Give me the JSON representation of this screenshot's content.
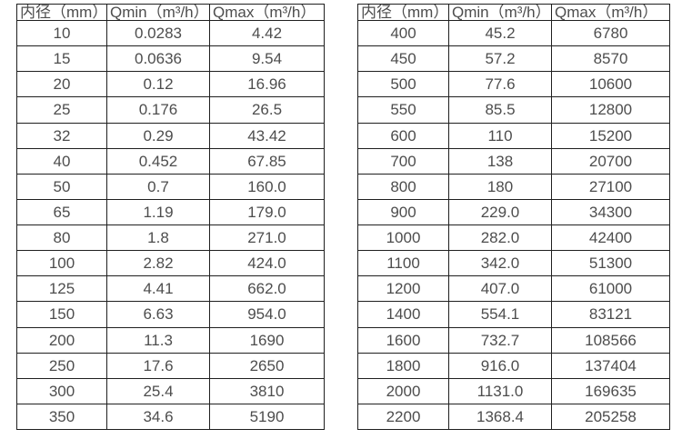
{
  "page": {
    "background_color": "#ffffff",
    "border_color": "#1f1f1f",
    "text_color": "#4d4d4d"
  },
  "chart_data": [
    {
      "type": "table",
      "columns": [
        "内径（mm）",
        "Qmin（m³/h）",
        "Qmax（m³/h）"
      ],
      "rows": [
        [
          "10",
          "0.0283",
          "4.42"
        ],
        [
          "15",
          "0.0636",
          "9.54"
        ],
        [
          "20",
          "0.12",
          "16.96"
        ],
        [
          "25",
          "0.176",
          "26.5"
        ],
        [
          "32",
          "0.29",
          "43.42"
        ],
        [
          "40",
          "0.452",
          "67.85"
        ],
        [
          "50",
          "0.7",
          "160.0"
        ],
        [
          "65",
          "1.19",
          "179.0"
        ],
        [
          "80",
          "1.8",
          "271.0"
        ],
        [
          "100",
          "2.82",
          "424.0"
        ],
        [
          "125",
          "4.41",
          "662.0"
        ],
        [
          "150",
          "6.63",
          "954.0"
        ],
        [
          "200",
          "11.3",
          "1690"
        ],
        [
          "250",
          "17.6",
          "2650"
        ],
        [
          "300",
          "25.4",
          "3810"
        ],
        [
          "350",
          "34.6",
          "5190"
        ]
      ]
    },
    {
      "type": "table",
      "columns": [
        "内径（mm）",
        "Qmin（m³/h）",
        "Qmax（m³/h）"
      ],
      "rows": [
        [
          "400",
          "45.2",
          "6780"
        ],
        [
          "450",
          "57.2",
          "8570"
        ],
        [
          "500",
          "77.6",
          "10600"
        ],
        [
          "550",
          "85.5",
          "12800"
        ],
        [
          "600",
          "110",
          "15200"
        ],
        [
          "700",
          "138",
          "20700"
        ],
        [
          "800",
          "180",
          "27100"
        ],
        [
          "900",
          "229.0",
          "34300"
        ],
        [
          "1000",
          "282.0",
          "42400"
        ],
        [
          "1100",
          "342.0",
          "51300"
        ],
        [
          "1200",
          "407.0",
          "61000"
        ],
        [
          "1400",
          "554.1",
          "83121"
        ],
        [
          "1600",
          "732.7",
          "108566"
        ],
        [
          "1800",
          "916.0",
          "137404"
        ],
        [
          "2000",
          "1131.0",
          "169635"
        ],
        [
          "2200",
          "1368.4",
          "205258"
        ]
      ]
    }
  ]
}
